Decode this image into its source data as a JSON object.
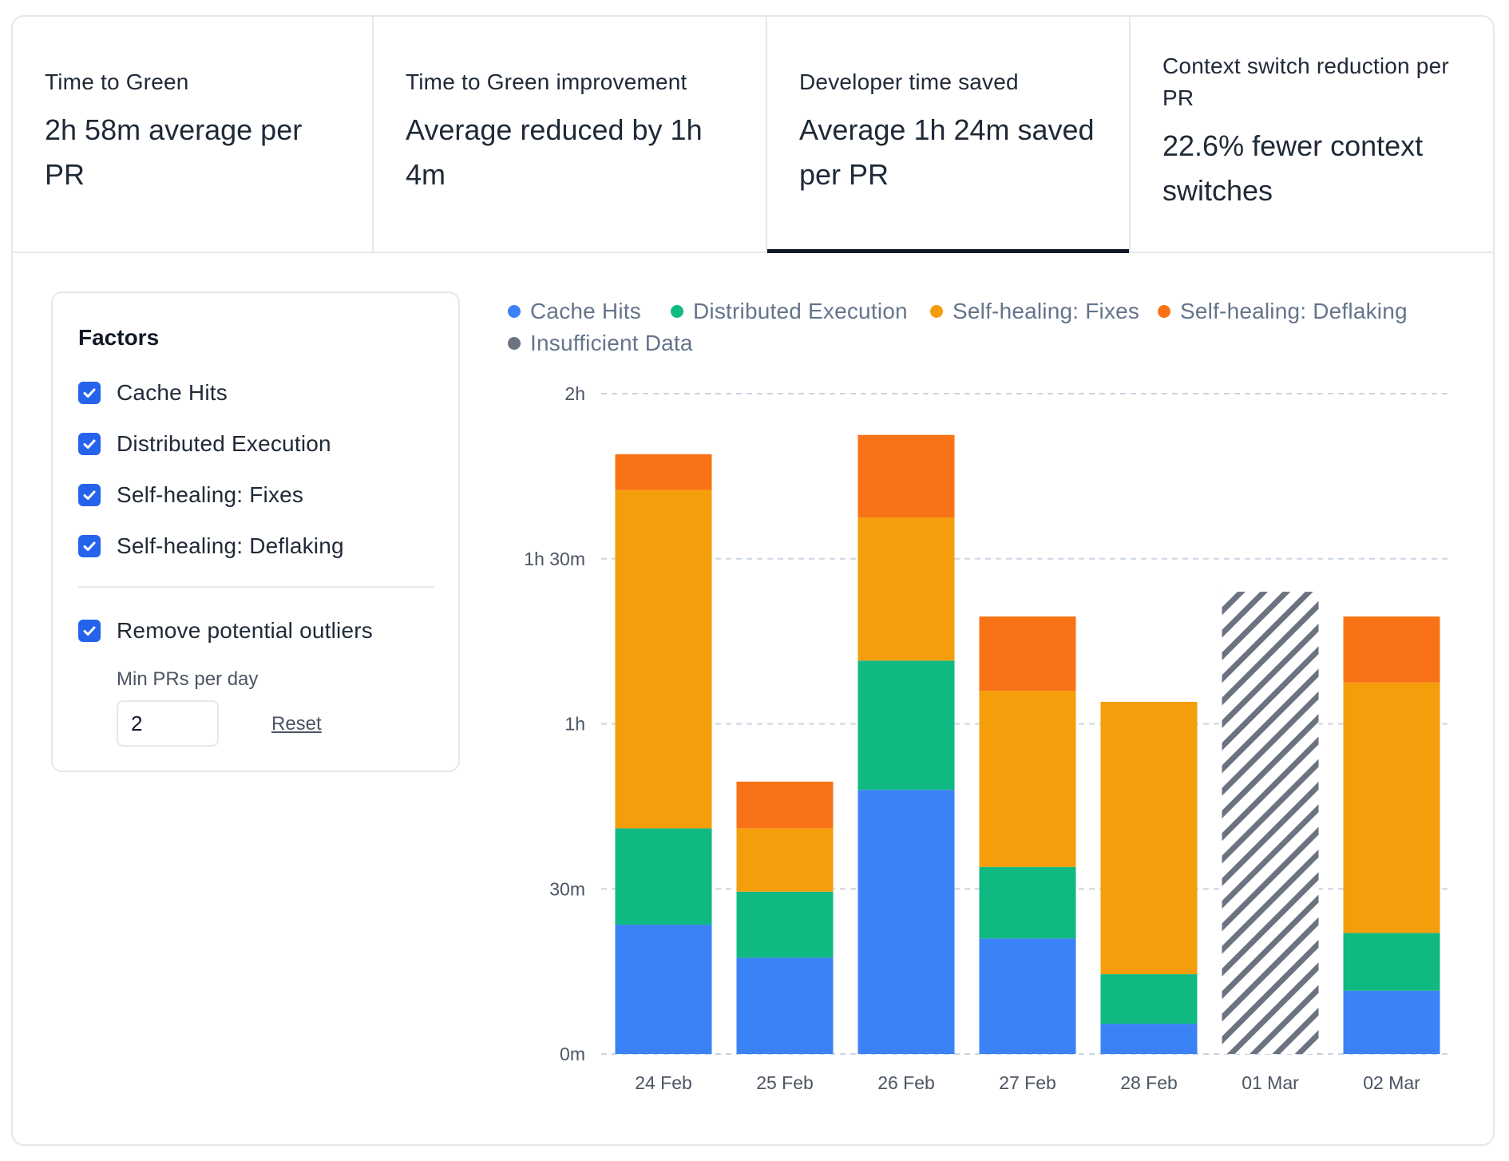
{
  "tabs": [
    {
      "label": "Time to Green",
      "value": "2h 58m average per PR",
      "active": false
    },
    {
      "label": "Time to Green improvement",
      "value": "Average reduced by 1h 4m",
      "active": false
    },
    {
      "label": "Developer time saved",
      "value": "Average 1h 24m saved per PR",
      "active": true
    },
    {
      "label": "Context switch reduction per PR",
      "value": "22.6% fewer context switches",
      "active": false
    }
  ],
  "factors": {
    "title": "Factors",
    "items": [
      {
        "label": "Cache Hits",
        "checked": true
      },
      {
        "label": "Distributed Execution",
        "checked": true
      },
      {
        "label": "Self-healing: Fixes",
        "checked": true
      },
      {
        "label": "Self-healing: Deflaking",
        "checked": true
      }
    ],
    "outliers": {
      "label": "Remove potential outliers",
      "checked": true
    },
    "min_prs_label": "Min PRs per day",
    "min_prs_value": "2",
    "reset_label": "Reset",
    "check_icon": "check-icon"
  },
  "chart_data": {
    "type": "bar",
    "stacked": true,
    "categories": [
      "24 Feb",
      "25 Feb",
      "26 Feb",
      "27 Feb",
      "28 Feb",
      "01 Mar",
      "02 Mar"
    ],
    "y_ticks": [
      "0m",
      "30m",
      "1h",
      "1h 30m",
      "2h"
    ],
    "ylim_minutes": [
      0,
      120
    ],
    "grid": "dashed horizontal",
    "legend_position": "top",
    "series": [
      {
        "name": "Cache Hits",
        "color": "#3b82f6",
        "values": [
          23.5,
          17.5,
          48,
          21,
          5.5,
          0,
          11.5
        ]
      },
      {
        "name": "Distributed Execution",
        "color": "#10b981",
        "values": [
          17.5,
          12,
          23.5,
          13,
          9,
          0,
          10.5
        ]
      },
      {
        "name": "Self-healing: Fixes",
        "color": "#f59e0b",
        "values": [
          61.5,
          11.5,
          26,
          32,
          49.5,
          0,
          45.5
        ]
      },
      {
        "name": "Self-healing: Deflaking",
        "color": "#f97316",
        "values": [
          6.5,
          8.5,
          15,
          13.5,
          0,
          0,
          12
        ]
      },
      {
        "name": "Insufficient Data",
        "color": "#6b7280",
        "values": [
          0,
          0,
          0,
          0,
          0,
          84,
          0
        ]
      }
    ]
  }
}
